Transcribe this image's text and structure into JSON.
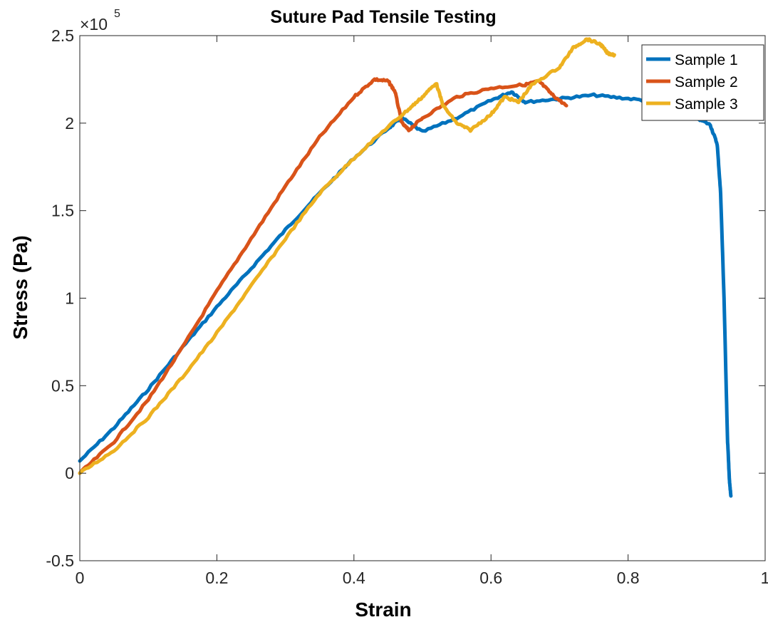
{
  "chart_data": {
    "type": "line",
    "title": "Suture Pad Tensile Testing",
    "xlabel": "Strain",
    "ylabel": "Stress (Pa)",
    "xlim": [
      0,
      1
    ],
    "ylim": [
      -50000,
      250000
    ],
    "x_ticks": [
      0,
      0.2,
      0.4,
      0.6,
      0.8,
      1
    ],
    "x_tick_labels": [
      "0",
      "0.2",
      "0.4",
      "0.6",
      "0.8",
      "1"
    ],
    "y_ticks": [
      -50000,
      0,
      50000,
      100000,
      150000,
      200000,
      250000
    ],
    "y_tick_labels": [
      "-0.5",
      "0",
      "0.5",
      "1",
      "1.5",
      "2",
      "2.5"
    ],
    "y_exponent_label": "×10",
    "y_exponent_power": "5",
    "grid": false,
    "legend_position": "top-right",
    "series": [
      {
        "name": "Sample 1",
        "color": "#0072BD",
        "x": [
          0,
          0.05,
          0.1,
          0.15,
          0.2,
          0.25,
          0.3,
          0.35,
          0.4,
          0.45,
          0.47,
          0.5,
          0.55,
          0.6,
          0.63,
          0.65,
          0.7,
          0.75,
          0.8,
          0.85,
          0.9,
          0.92,
          0.93,
          0.935,
          0.94,
          0.945,
          0.948,
          0.95
        ],
        "y": [
          7000,
          26000,
          48000,
          72000,
          95000,
          117000,
          139000,
          160000,
          180000,
          197000,
          203000,
          195000,
          203000,
          213000,
          218000,
          212000,
          214000,
          216000,
          214000,
          212000,
          203000,
          199000,
          188000,
          160000,
          100000,
          20000,
          -5000,
          -13000
        ]
      },
      {
        "name": "Sample 2",
        "color": "#D95319",
        "x": [
          0,
          0.05,
          0.1,
          0.15,
          0.2,
          0.25,
          0.3,
          0.35,
          0.4,
          0.43,
          0.45,
          0.46,
          0.47,
          0.48,
          0.5,
          0.55,
          0.6,
          0.65,
          0.67,
          0.69,
          0.71
        ],
        "y": [
          0,
          18000,
          42000,
          72000,
          104000,
          134000,
          164000,
          192000,
          215000,
          225000,
          224000,
          218000,
          200000,
          196000,
          203000,
          215000,
          220000,
          222000,
          224000,
          216000,
          210000
        ]
      },
      {
        "name": "Sample 3",
        "color": "#EDB120",
        "x": [
          0,
          0.05,
          0.1,
          0.15,
          0.2,
          0.25,
          0.3,
          0.35,
          0.4,
          0.45,
          0.48,
          0.5,
          0.52,
          0.53,
          0.55,
          0.57,
          0.6,
          0.62,
          0.64,
          0.66,
          0.7,
          0.72,
          0.74,
          0.76,
          0.77,
          0.78
        ],
        "y": [
          0,
          13000,
          32000,
          55000,
          80000,
          107000,
          134000,
          160000,
          180000,
          198000,
          208000,
          215000,
          223000,
          210000,
          200000,
          196000,
          205000,
          215000,
          212000,
          222000,
          232000,
          243000,
          248000,
          245000,
          240000,
          239000
        ]
      }
    ]
  }
}
